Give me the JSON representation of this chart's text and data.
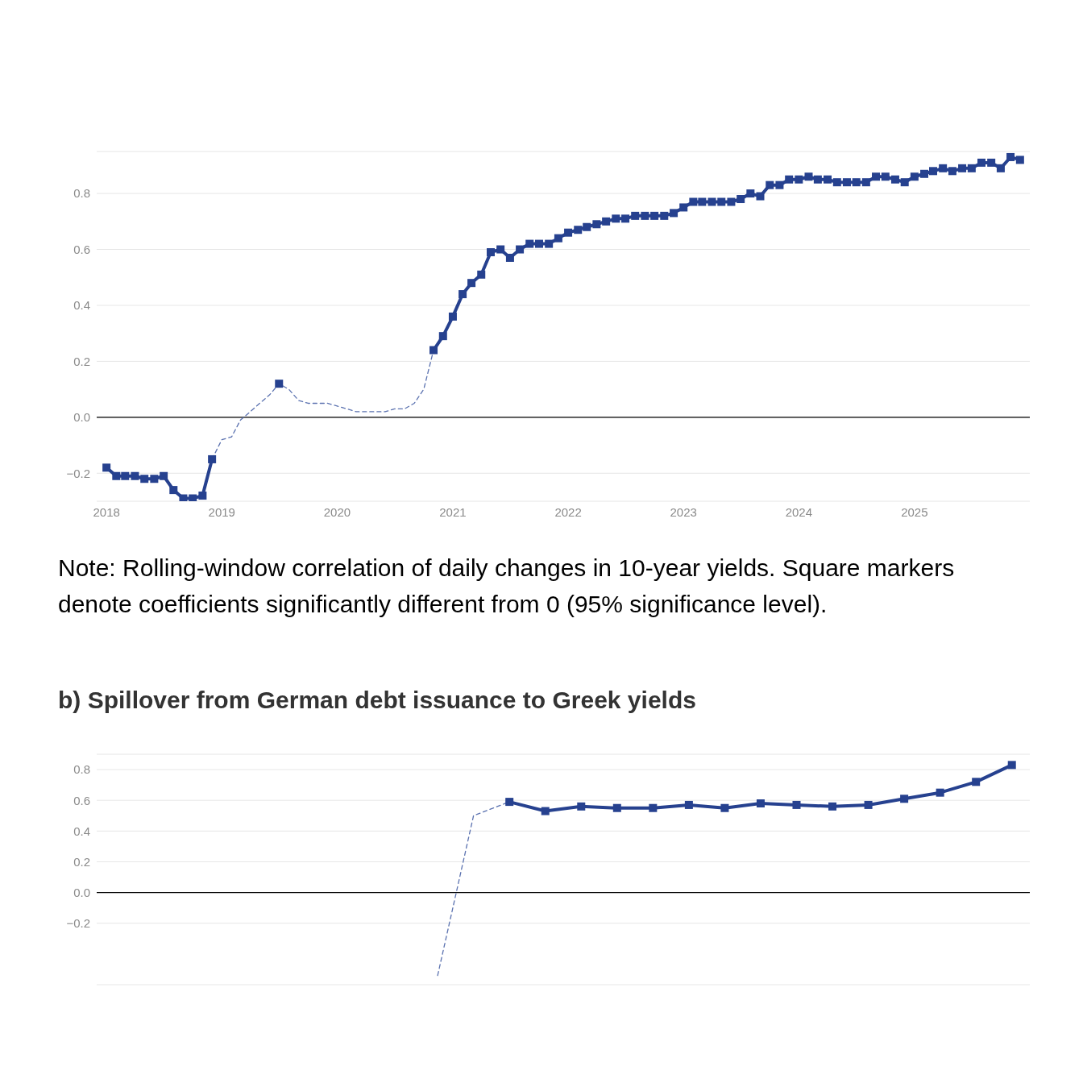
{
  "chart_data": [
    {
      "type": "line",
      "x": [
        "2018-01",
        "2018-02",
        "2018-03",
        "2018-04",
        "2018-05",
        "2018-06",
        "2018-07",
        "2018-08",
        "2018-09",
        "2018-10",
        "2018-11",
        "2018-12",
        "2019-01",
        "2019-02",
        "2019-03",
        "2019-04",
        "2019-05",
        "2019-06",
        "2019-07",
        "2019-08",
        "2019-09",
        "2019-10",
        "2019-11",
        "2019-12",
        "2020-01",
        "2020-02",
        "2020-03",
        "2020-04",
        "2020-05",
        "2020-06",
        "2020-07",
        "2020-08",
        "2020-09",
        "2020-10",
        "2020-11",
        "2020-12",
        "2021-01",
        "2021-02",
        "2021-03",
        "2021-04",
        "2021-05",
        "2021-06",
        "2021-07",
        "2021-08",
        "2021-09",
        "2021-10",
        "2021-11",
        "2021-12",
        "2022-01",
        "2022-02",
        "2022-03",
        "2022-04",
        "2022-05",
        "2022-06",
        "2022-07",
        "2022-08",
        "2022-09",
        "2022-10",
        "2022-11",
        "2022-12",
        "2023-01",
        "2023-02",
        "2023-03",
        "2023-04",
        "2023-05",
        "2023-06",
        "2023-07",
        "2023-08",
        "2023-09",
        "2023-10",
        "2023-11",
        "2023-12",
        "2024-01",
        "2024-02",
        "2024-03",
        "2024-04",
        "2024-05",
        "2024-06",
        "2024-07",
        "2024-08",
        "2024-09",
        "2024-10",
        "2024-11",
        "2024-12",
        "2025-01",
        "2025-02",
        "2025-03",
        "2025-04",
        "2025-05",
        "2025-06",
        "2025-07",
        "2025-08",
        "2025-09",
        "2025-10",
        "2025-11",
        "2025-12"
      ],
      "series": [
        {
          "color": "#26418f",
          "marker": "square",
          "line_style": "solid",
          "values": [
            -0.18,
            -0.21,
            -0.21,
            -0.21,
            -0.22,
            -0.22,
            -0.21,
            -0.26,
            -0.29,
            -0.29,
            -0.28,
            -0.15,
            null,
            null,
            null,
            null,
            null,
            null,
            0.12,
            null,
            null,
            null,
            null,
            null,
            null,
            null,
            null,
            null,
            null,
            null,
            null,
            null,
            null,
            null,
            0.24,
            0.29,
            0.36,
            0.44,
            0.48,
            0.51,
            0.59,
            0.6,
            0.57,
            0.6,
            0.62,
            0.62,
            0.62,
            0.64,
            0.66,
            0.67,
            0.68,
            0.69,
            0.7,
            0.71,
            0.71,
            0.72,
            0.72,
            0.72,
            0.72,
            0.73,
            0.75,
            0.77,
            0.77,
            0.77,
            0.77,
            0.77,
            0.78,
            0.8,
            0.79,
            0.83,
            0.83,
            0.85,
            0.85,
            0.86,
            0.85,
            0.85,
            0.84,
            0.84,
            0.84,
            0.84,
            0.86,
            0.86,
            0.85,
            0.84,
            0.86,
            0.87,
            0.88,
            0.89,
            0.88,
            0.89,
            0.89,
            0.91,
            0.91,
            0.89,
            0.93,
            0.92
          ]
        },
        {
          "color": "#5b72b0",
          "marker": "none",
          "line_style": "dashed",
          "values": [
            null,
            null,
            null,
            null,
            null,
            null,
            null,
            null,
            null,
            null,
            null,
            -0.15,
            -0.08,
            -0.07,
            -0.01,
            0.02,
            0.05,
            0.08,
            0.12,
            0.1,
            0.06,
            0.05,
            0.05,
            0.05,
            0.04,
            0.03,
            0.02,
            0.02,
            0.02,
            0.02,
            0.03,
            0.03,
            0.05,
            0.1,
            0.24,
            null,
            null,
            null,
            null,
            null,
            null,
            null,
            null,
            null,
            null,
            null,
            null,
            null,
            null,
            null,
            null,
            null,
            null,
            null,
            null,
            null,
            null,
            null,
            null,
            null,
            null,
            null,
            null,
            null,
            null,
            null,
            null,
            null,
            null,
            null,
            null,
            null,
            null,
            null,
            null,
            null,
            null,
            null,
            null,
            null,
            null,
            null,
            null,
            null,
            null,
            null,
            null,
            null,
            null,
            null,
            null,
            null,
            null,
            null,
            null,
            null
          ]
        }
      ],
      "xlim": [
        "2017-12",
        "2026-01"
      ],
      "xticks": [
        "2018",
        "2019",
        "2020",
        "2021",
        "2022",
        "2023",
        "2024",
        "2025"
      ],
      "ylim": [
        -0.3,
        0.95
      ],
      "yticks": [
        {
          "value": -0.2,
          "label": "−0.2"
        },
        {
          "value": 0,
          "label": "0.0"
        },
        {
          "value": 0.2,
          "label": "0.2"
        },
        {
          "value": 0.4,
          "label": "0.4"
        },
        {
          "value": 0.6,
          "label": "0.6"
        },
        {
          "value": 0.8,
          "label": "0.8"
        }
      ],
      "grid": "y",
      "ref_lines": [
        {
          "axis": "y",
          "value": 0,
          "color": "#000000"
        }
      ],
      "annotations": [
        "Note: Rolling-window correlation of daily changes in 10-year yields. Square markers denote coefficients significantly different from 0 (95% significance level)."
      ]
    },
    {
      "type": "line",
      "title": "b) Spillover from German debt issuance to Greek yields",
      "categories": [
        null,
        null,
        null,
        null,
        null,
        null,
        null,
        null,
        null,
        null,
        null,
        null,
        null,
        null,
        null,
        null,
        null,
        null,
        null,
        null,
        null,
        null,
        null,
        null,
        null,
        null
      ],
      "series": [
        {
          "color": "#26418f",
          "marker": "square",
          "line_style": "solid",
          "values": [
            null,
            null,
            null,
            null,
            null,
            null,
            null,
            null,
            null,
            null,
            null,
            0.59,
            0.53,
            0.56,
            0.55,
            0.55,
            0.57,
            0.55,
            0.58,
            0.57,
            0.56,
            0.57,
            0.61,
            0.65,
            0.72,
            0.83
          ]
        },
        {
          "color": "#5b72b0",
          "marker": "none",
          "line_style": "dashed",
          "values": [
            null,
            null,
            null,
            null,
            null,
            null,
            null,
            null,
            null,
            -0.54,
            0.5,
            0.59,
            null,
            null,
            null,
            null,
            null,
            null,
            null,
            null,
            null,
            null,
            null,
            null,
            null,
            null
          ]
        }
      ],
      "ylim": [
        -0.6,
        0.9
      ],
      "yticks": [
        {
          "value": -0.2,
          "label": "−0.2"
        },
        {
          "value": 0,
          "label": "0.0"
        },
        {
          "value": 0.2,
          "label": "0.2"
        },
        {
          "value": 0.4,
          "label": "0.4"
        },
        {
          "value": 0.6,
          "label": "0.6"
        },
        {
          "value": 0.8,
          "label": "0.8"
        }
      ],
      "tick_labels": "y",
      "grid": "y",
      "ref_lines": [
        {
          "axis": "y",
          "value": 0,
          "color": "#000000"
        }
      ]
    }
  ]
}
